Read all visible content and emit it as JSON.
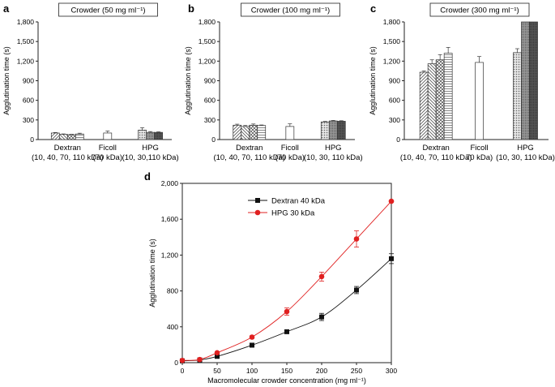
{
  "panels": [
    {
      "label": "a"
    },
    {
      "label": "b"
    },
    {
      "label": "c"
    },
    {
      "label": "d"
    }
  ],
  "chart_data": [
    {
      "type": "bar",
      "panel": "a",
      "title": "Crowder (50 mg ml⁻¹)",
      "ylabel": "Agglutination time (s)",
      "ylim": [
        0,
        1800
      ],
      "yticks": [
        "0",
        "300",
        "600",
        "900",
        "1,200",
        "1,500",
        "1,800"
      ],
      "groups": [
        {
          "name": "Dextran",
          "sub": "(10, 40, 70, 110 kDa)",
          "values": [
            100,
            80,
            75,
            85
          ],
          "errors": [
            8,
            6,
            6,
            12
          ],
          "patterns": [
            "diag",
            "bdiag",
            "cross",
            "hline"
          ]
        },
        {
          "name": "Ficoll",
          "sub": "(70 kDa)",
          "values": [
            100
          ],
          "errors": [
            30
          ],
          "patterns": [
            "white"
          ]
        },
        {
          "name": "HPG",
          "sub": "(10, 30,110 kDa)",
          "values": [
            145,
            110,
            110
          ],
          "errors": [
            35,
            12,
            8
          ],
          "patterns": [
            "dots",
            "dense",
            "dark"
          ]
        }
      ]
    },
    {
      "type": "bar",
      "panel": "b",
      "title": "Crowder (100 mg ml⁻¹)",
      "ylabel": "Agglutination time (s)",
      "ylim": [
        0,
        1800
      ],
      "yticks": [
        "0",
        "300",
        "600",
        "900",
        "1,200",
        "1,500",
        "1,800"
      ],
      "groups": [
        {
          "name": "Dextran",
          "sub": "(10, 40, 70, 110 kDa)",
          "values": [
            220,
            200,
            220,
            215
          ],
          "errors": [
            15,
            15,
            18,
            8
          ],
          "patterns": [
            "diag",
            "bdiag",
            "cross",
            "hline"
          ]
        },
        {
          "name": "Ficoll",
          "sub": "(70 kDa)",
          "values": [
            200
          ],
          "errors": [
            40
          ],
          "patterns": [
            "white"
          ]
        },
        {
          "name": "HPG",
          "sub": "(10, 30, 110 kDa)",
          "values": [
            270,
            285,
            280
          ],
          "errors": [
            8,
            8,
            8
          ],
          "patterns": [
            "dots",
            "dense",
            "dark"
          ]
        }
      ]
    },
    {
      "type": "bar",
      "panel": "c",
      "title": "Crowder (300 mg ml⁻¹)",
      "ylabel": "Agglutination time (s)",
      "ylim": [
        0,
        1800
      ],
      "yticks": [
        "0",
        "300",
        "600",
        "900",
        "1,200",
        "1,500",
        "1,800"
      ],
      "groups": [
        {
          "name": "Dextran",
          "sub": "(10, 40, 70, 110 kDa)",
          "values": [
            1030,
            1160,
            1220,
            1320
          ],
          "errors": [
            20,
            60,
            80,
            90
          ],
          "patterns": [
            "diag",
            "bdiag",
            "cross",
            "hline"
          ]
        },
        {
          "name": "Ficoll",
          "sub": "70 kDa)",
          "values": [
            1180
          ],
          "errors": [
            90
          ],
          "patterns": [
            "white"
          ]
        },
        {
          "name": "HPG",
          "sub": "(10, 30, 110 kDa)",
          "values": [
            1330,
            1800,
            1800
          ],
          "errors": [
            60,
            0,
            0
          ],
          "patterns": [
            "dots",
            "dense",
            "dark"
          ]
        }
      ]
    },
    {
      "type": "line",
      "panel": "d",
      "xlabel": "Macromolecular crowder concentration (mg ml⁻¹)",
      "ylabel": "Agglutination time (s)",
      "xlim": [
        0,
        300
      ],
      "ylim": [
        0,
        2000
      ],
      "xticks": [
        "0",
        "50",
        "100",
        "150",
        "200",
        "250",
        "300"
      ],
      "yticks": [
        "0",
        "400",
        "800",
        "1,200",
        "1,600",
        "2,000"
      ],
      "legend_position": "top-left",
      "series": [
        {
          "name": "Dextran 40 kDa",
          "color": "#111111",
          "marker": "square",
          "x": [
            0,
            25,
            50,
            100,
            150,
            200,
            250,
            300
          ],
          "y": [
            20,
            30,
            70,
            195,
            345,
            510,
            810,
            1160
          ],
          "err": [
            5,
            5,
            8,
            15,
            15,
            40,
            40,
            55
          ]
        },
        {
          "name": "HPG 30 kDa",
          "color": "#e02020",
          "marker": "circle",
          "x": [
            0,
            25,
            50,
            100,
            150,
            200,
            250,
            300
          ],
          "y": [
            25,
            35,
            110,
            285,
            570,
            960,
            1380,
            1800
          ],
          "err": [
            5,
            5,
            10,
            15,
            40,
            50,
            90,
            0
          ]
        }
      ]
    }
  ]
}
